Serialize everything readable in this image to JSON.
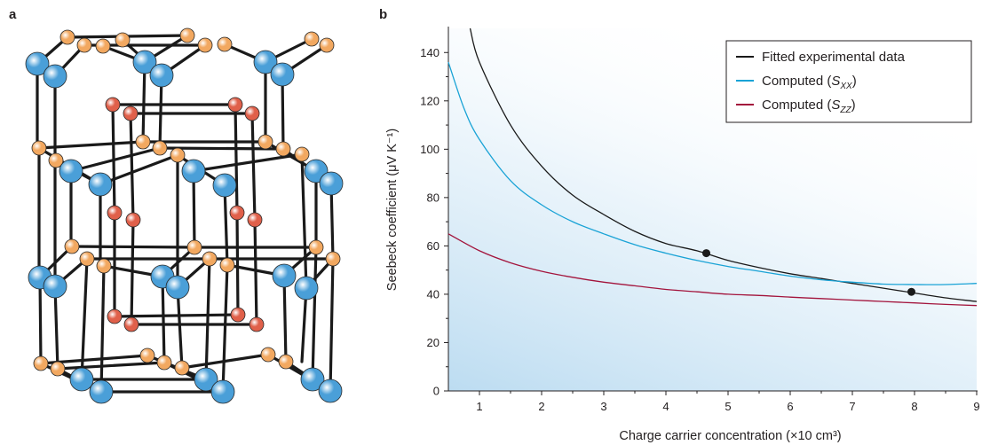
{
  "panels": {
    "a": "a",
    "b": "b"
  },
  "colors": {
    "bond": "#1a1a1a",
    "atom_blue": "#4a9fd8",
    "atom_orange": "#f2a860",
    "atom_red": "#e0604a",
    "series_black": "#1a1a1a",
    "series_cyan": "#1aa3d6",
    "series_red": "#a3143c",
    "shade": "#cfe6f5"
  },
  "chart_data": {
    "type": "line",
    "xlabel": "Charge carrier concentration  (×10 cm³)",
    "ylabel": "Seebeck coefficient  (μV K⁻¹)",
    "xlim": [
      0.5,
      9
    ],
    "ylim": [
      0,
      150
    ],
    "xticks": [
      1,
      2,
      3,
      4,
      5,
      6,
      7,
      8,
      9
    ],
    "yticks": [
      0,
      20,
      40,
      60,
      80,
      100,
      120,
      140
    ],
    "legend_position": "top-right",
    "series": [
      {
        "name": "Fitted experimental data",
        "x": [
          0.85,
          1.0,
          1.5,
          2.0,
          2.5,
          3.0,
          3.5,
          4.0,
          4.5,
          5.0,
          5.5,
          6.0,
          6.5,
          7.0,
          7.5,
          8.0,
          8.5,
          9.0
        ],
        "y": [
          150,
          136,
          110,
          93,
          81,
          73,
          66,
          61,
          58,
          54,
          51,
          48.5,
          46.5,
          44.5,
          42.5,
          40.5,
          38.5,
          37
        ]
      },
      {
        "name": "Computed (S_XX)",
        "x": [
          0.5,
          0.75,
          1.0,
          1.5,
          2.0,
          2.5,
          3.0,
          3.5,
          4.0,
          4.5,
          5.0,
          5.5,
          6.0,
          6.5,
          7.0,
          7.5,
          8.0,
          8.5,
          9.0
        ],
        "y": [
          136,
          117,
          104,
          87,
          77,
          70,
          65,
          60.5,
          57,
          54,
          51.5,
          49.5,
          47.5,
          46,
          45,
          44.2,
          44,
          44,
          44.5
        ]
      },
      {
        "name": "Computed (S_ZZ)",
        "x": [
          0.5,
          1.0,
          1.5,
          2.0,
          2.5,
          3.0,
          3.5,
          4.0,
          4.5,
          5.0,
          5.5,
          6.0,
          6.5,
          7.0,
          7.5,
          8.0,
          8.5,
          9.0
        ],
        "y": [
          65,
          58,
          53,
          49.5,
          47,
          45,
          43.5,
          42,
          41,
          40,
          39.5,
          38.8,
          38.2,
          37.6,
          37,
          36.4,
          35.8,
          35.3
        ]
      }
    ],
    "points": [
      {
        "x": 4.65,
        "y": 57
      },
      {
        "x": 7.95,
        "y": 41
      }
    ],
    "legend": {
      "black": "Fitted experimental data",
      "cyan_prefix": "Computed (",
      "cyan_sym": "S",
      "cyan_sub": "XX",
      "cyan_suffix": ")",
      "red_prefix": "Computed (",
      "red_sym": "S",
      "red_sub": "ZZ",
      "red_suffix": ")"
    }
  }
}
